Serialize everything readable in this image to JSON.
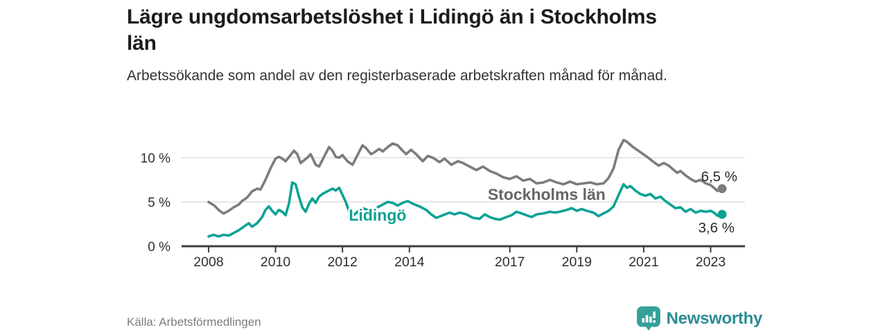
{
  "header": {
    "title": "Lägre ungdomsarbetslöshet i Lidingö än i Stockholms län",
    "title_lines": [
      "Lägre ungdomsarbetslöshet i Lidingö än i Stockholms",
      "län"
    ],
    "subtitle": "Arbetssökande som andel av den registerbaserade arbetskraften månad för månad."
  },
  "footer": {
    "source": "Källa: Arbetsförmedlingen",
    "brand": "Newsworthy"
  },
  "colors": {
    "stockholm_line": "#7c7c7c",
    "lidingo_line": "#0ca295",
    "grid": "#e3e3e3",
    "axis": "#3d3d3d",
    "tick_text": "#2e2e2e",
    "end_label_text": "#2b2b2b",
    "brand_teal": "#2b8c93",
    "icon_teal": "#35a19a"
  },
  "chart_data": {
    "type": "line",
    "title": "Lägre ungdomsarbetslöshet i Lidingö än i Stockholms län",
    "unit": "%",
    "grid": "horizontal-only",
    "legend_position": "inline-labels",
    "x_range": [
      2008.0,
      2023.3
    ],
    "ylim": [
      0,
      12.5
    ],
    "x_ticks": [
      {
        "year": 2008,
        "label": "2008"
      },
      {
        "year": 2010,
        "label": "2010"
      },
      {
        "year": 2012,
        "label": "2012"
      },
      {
        "year": 2014,
        "label": "2014"
      },
      {
        "year": 2017,
        "label": "2017"
      },
      {
        "year": 2019,
        "label": "2019"
      },
      {
        "year": 2021,
        "label": "2021"
      },
      {
        "year": 2023,
        "label": "2023"
      }
    ],
    "y_ticks": [
      {
        "value": 0,
        "label": "0 %"
      },
      {
        "value": 5,
        "label": "5 %"
      },
      {
        "value": 10,
        "label": "10 %"
      }
    ],
    "series": [
      {
        "name": "Stockholms län",
        "color": "#7c7c7c",
        "label_color": "#666666",
        "label_pos": {
          "year": 2018.1,
          "value": 5.85
        },
        "end_label": "6,5 %",
        "end_value": 6.5,
        "end_label_side": "above",
        "points": [
          [
            2008.0,
            5.0
          ],
          [
            2008.17,
            4.6
          ],
          [
            2008.33,
            4.0
          ],
          [
            2008.45,
            3.7
          ],
          [
            2008.6,
            4.0
          ],
          [
            2008.75,
            4.4
          ],
          [
            2008.9,
            4.7
          ],
          [
            2009.0,
            5.1
          ],
          [
            2009.15,
            5.5
          ],
          [
            2009.3,
            6.2
          ],
          [
            2009.45,
            6.5
          ],
          [
            2009.55,
            6.4
          ],
          [
            2009.7,
            7.5
          ],
          [
            2009.85,
            8.8
          ],
          [
            2010.0,
            9.9
          ],
          [
            2010.1,
            10.1
          ],
          [
            2010.2,
            9.9
          ],
          [
            2010.3,
            9.6
          ],
          [
            2010.45,
            10.3
          ],
          [
            2010.55,
            10.8
          ],
          [
            2010.65,
            10.4
          ],
          [
            2010.75,
            9.4
          ],
          [
            2010.85,
            9.7
          ],
          [
            2010.95,
            10.0
          ],
          [
            2011.05,
            10.4
          ],
          [
            2011.2,
            9.2
          ],
          [
            2011.3,
            9.0
          ],
          [
            2011.45,
            10.1
          ],
          [
            2011.6,
            11.2
          ],
          [
            2011.7,
            10.8
          ],
          [
            2011.8,
            10.1
          ],
          [
            2011.9,
            10.0
          ],
          [
            2012.0,
            10.3
          ],
          [
            2012.15,
            9.6
          ],
          [
            2012.3,
            9.2
          ],
          [
            2012.45,
            10.3
          ],
          [
            2012.6,
            11.4
          ],
          [
            2012.7,
            11.1
          ],
          [
            2012.85,
            10.4
          ],
          [
            2012.95,
            10.6
          ],
          [
            2013.1,
            11.0
          ],
          [
            2013.2,
            10.7
          ],
          [
            2013.35,
            11.2
          ],
          [
            2013.5,
            11.6
          ],
          [
            2013.65,
            11.4
          ],
          [
            2013.8,
            10.8
          ],
          [
            2013.9,
            10.4
          ],
          [
            2014.05,
            10.9
          ],
          [
            2014.2,
            10.4
          ],
          [
            2014.4,
            9.6
          ],
          [
            2014.55,
            10.2
          ],
          [
            2014.7,
            10.0
          ],
          [
            2014.9,
            9.5
          ],
          [
            2015.05,
            9.9
          ],
          [
            2015.25,
            9.2
          ],
          [
            2015.45,
            9.6
          ],
          [
            2015.6,
            9.4
          ],
          [
            2015.8,
            9.0
          ],
          [
            2016.0,
            8.6
          ],
          [
            2016.2,
            9.0
          ],
          [
            2016.4,
            8.5
          ],
          [
            2016.6,
            8.2
          ],
          [
            2016.8,
            7.8
          ],
          [
            2017.0,
            7.6
          ],
          [
            2017.2,
            7.9
          ],
          [
            2017.4,
            7.4
          ],
          [
            2017.6,
            7.6
          ],
          [
            2017.8,
            7.1
          ],
          [
            2018.0,
            7.2
          ],
          [
            2018.2,
            7.5
          ],
          [
            2018.4,
            7.2
          ],
          [
            2018.6,
            7.0
          ],
          [
            2018.8,
            7.3
          ],
          [
            2019.0,
            7.0
          ],
          [
            2019.2,
            7.1
          ],
          [
            2019.4,
            7.2
          ],
          [
            2019.6,
            7.0
          ],
          [
            2019.8,
            7.1
          ],
          [
            2019.95,
            7.7
          ],
          [
            2020.1,
            8.8
          ],
          [
            2020.25,
            10.9
          ],
          [
            2020.4,
            12.0
          ],
          [
            2020.5,
            11.8
          ],
          [
            2020.65,
            11.3
          ],
          [
            2020.8,
            10.9
          ],
          [
            2020.95,
            10.5
          ],
          [
            2021.1,
            10.1
          ],
          [
            2021.3,
            9.5
          ],
          [
            2021.45,
            9.1
          ],
          [
            2021.6,
            9.4
          ],
          [
            2021.75,
            9.1
          ],
          [
            2021.9,
            8.6
          ],
          [
            2022.0,
            8.3
          ],
          [
            2022.1,
            8.5
          ],
          [
            2022.25,
            8.0
          ],
          [
            2022.4,
            7.6
          ],
          [
            2022.55,
            7.3
          ],
          [
            2022.7,
            7.5
          ],
          [
            2022.85,
            7.1
          ],
          [
            2023.0,
            6.9
          ],
          [
            2023.1,
            6.6
          ],
          [
            2023.2,
            6.25
          ],
          [
            2023.3,
            6.5
          ]
        ]
      },
      {
        "name": "Lidingö",
        "color": "#0ca295",
        "label_color": "#0ca295",
        "label_pos": {
          "year": 2013.05,
          "value": 3.5
        },
        "end_label": "3,6 %",
        "end_value": 3.6,
        "end_label_side": "below",
        "points": [
          [
            2008.0,
            1.1
          ],
          [
            2008.15,
            1.3
          ],
          [
            2008.3,
            1.1
          ],
          [
            2008.45,
            1.3
          ],
          [
            2008.6,
            1.2
          ],
          [
            2008.75,
            1.5
          ],
          [
            2008.9,
            1.8
          ],
          [
            2009.05,
            2.2
          ],
          [
            2009.2,
            2.6
          ],
          [
            2009.3,
            2.2
          ],
          [
            2009.45,
            2.6
          ],
          [
            2009.6,
            3.3
          ],
          [
            2009.7,
            4.1
          ],
          [
            2009.8,
            4.5
          ],
          [
            2009.9,
            4.0
          ],
          [
            2010.0,
            3.6
          ],
          [
            2010.1,
            4.1
          ],
          [
            2010.2,
            3.9
          ],
          [
            2010.3,
            3.5
          ],
          [
            2010.4,
            4.8
          ],
          [
            2010.5,
            7.2
          ],
          [
            2010.6,
            7.0
          ],
          [
            2010.7,
            5.6
          ],
          [
            2010.8,
            4.4
          ],
          [
            2010.9,
            3.9
          ],
          [
            2011.0,
            4.8
          ],
          [
            2011.1,
            5.4
          ],
          [
            2011.2,
            4.9
          ],
          [
            2011.3,
            5.6
          ],
          [
            2011.4,
            5.9
          ],
          [
            2011.5,
            6.1
          ],
          [
            2011.6,
            6.3
          ],
          [
            2011.7,
            6.5
          ],
          [
            2011.8,
            6.3
          ],
          [
            2011.9,
            6.6
          ],
          [
            2012.0,
            5.8
          ],
          [
            2012.1,
            5.0
          ],
          [
            2012.2,
            3.9
          ],
          [
            2012.3,
            3.4
          ],
          [
            2012.45,
            3.9
          ],
          [
            2012.6,
            4.3
          ],
          [
            2012.75,
            4.1
          ],
          [
            2012.9,
            4.0
          ],
          [
            2013.05,
            4.4
          ],
          [
            2013.2,
            4.7
          ],
          [
            2013.35,
            5.0
          ],
          [
            2013.5,
            4.9
          ],
          [
            2013.65,
            4.6
          ],
          [
            2013.8,
            4.9
          ],
          [
            2013.95,
            5.1
          ],
          [
            2014.1,
            4.8
          ],
          [
            2014.3,
            4.5
          ],
          [
            2014.5,
            4.1
          ],
          [
            2014.65,
            3.6
          ],
          [
            2014.8,
            3.2
          ],
          [
            2015.0,
            3.5
          ],
          [
            2015.2,
            3.8
          ],
          [
            2015.35,
            3.6
          ],
          [
            2015.5,
            3.8
          ],
          [
            2015.7,
            3.6
          ],
          [
            2015.9,
            3.2
          ],
          [
            2016.1,
            3.1
          ],
          [
            2016.25,
            3.6
          ],
          [
            2016.4,
            3.3
          ],
          [
            2016.55,
            3.1
          ],
          [
            2016.7,
            3.0
          ],
          [
            2016.9,
            3.3
          ],
          [
            2017.05,
            3.5
          ],
          [
            2017.2,
            3.9
          ],
          [
            2017.35,
            3.7
          ],
          [
            2017.5,
            3.5
          ],
          [
            2017.65,
            3.3
          ],
          [
            2017.8,
            3.6
          ],
          [
            2018.0,
            3.7
          ],
          [
            2018.2,
            3.9
          ],
          [
            2018.35,
            3.8
          ],
          [
            2018.5,
            3.9
          ],
          [
            2018.7,
            4.1
          ],
          [
            2018.85,
            4.3
          ],
          [
            2019.0,
            4.0
          ],
          [
            2019.15,
            4.2
          ],
          [
            2019.3,
            4.0
          ],
          [
            2019.5,
            3.8
          ],
          [
            2019.65,
            3.4
          ],
          [
            2019.8,
            3.7
          ],
          [
            2019.95,
            4.0
          ],
          [
            2020.1,
            4.5
          ],
          [
            2020.25,
            5.8
          ],
          [
            2020.4,
            7.0
          ],
          [
            2020.5,
            6.6
          ],
          [
            2020.6,
            6.8
          ],
          [
            2020.75,
            6.3
          ],
          [
            2020.9,
            5.9
          ],
          [
            2021.05,
            5.7
          ],
          [
            2021.2,
            5.9
          ],
          [
            2021.35,
            5.4
          ],
          [
            2021.5,
            5.6
          ],
          [
            2021.65,
            5.1
          ],
          [
            2021.8,
            4.7
          ],
          [
            2021.95,
            4.3
          ],
          [
            2022.1,
            4.4
          ],
          [
            2022.25,
            3.9
          ],
          [
            2022.4,
            4.2
          ],
          [
            2022.55,
            3.8
          ],
          [
            2022.7,
            4.0
          ],
          [
            2022.85,
            3.9
          ],
          [
            2023.0,
            4.0
          ],
          [
            2023.1,
            3.8
          ],
          [
            2023.2,
            3.45
          ],
          [
            2023.3,
            3.6
          ]
        ]
      }
    ]
  }
}
